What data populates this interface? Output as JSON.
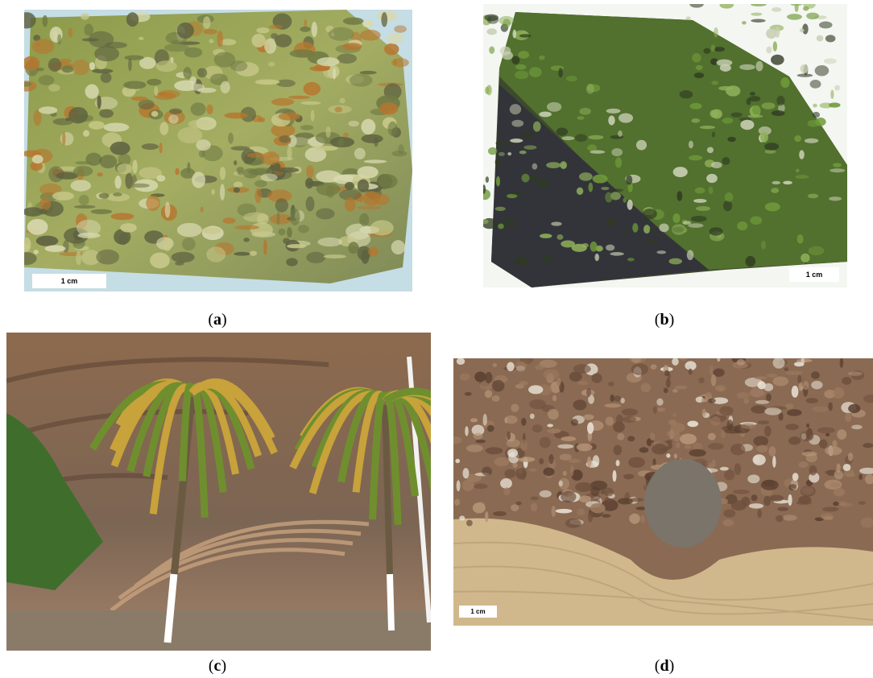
{
  "panels": [
    {
      "scale_bar": "1 cm",
      "caption": {
        "open": "(",
        "letter": "a",
        "close": ")"
      }
    },
    {
      "scale_bar": "1 cm",
      "caption": {
        "open": "(",
        "letter": "b",
        "close": ")"
      }
    },
    {
      "caption": {
        "open": "(",
        "letter": "c",
        "close": ")"
      }
    },
    {
      "scale_bar": "1 cm",
      "caption": {
        "open": "(",
        "letter": "d",
        "close": ")"
      }
    }
  ]
}
